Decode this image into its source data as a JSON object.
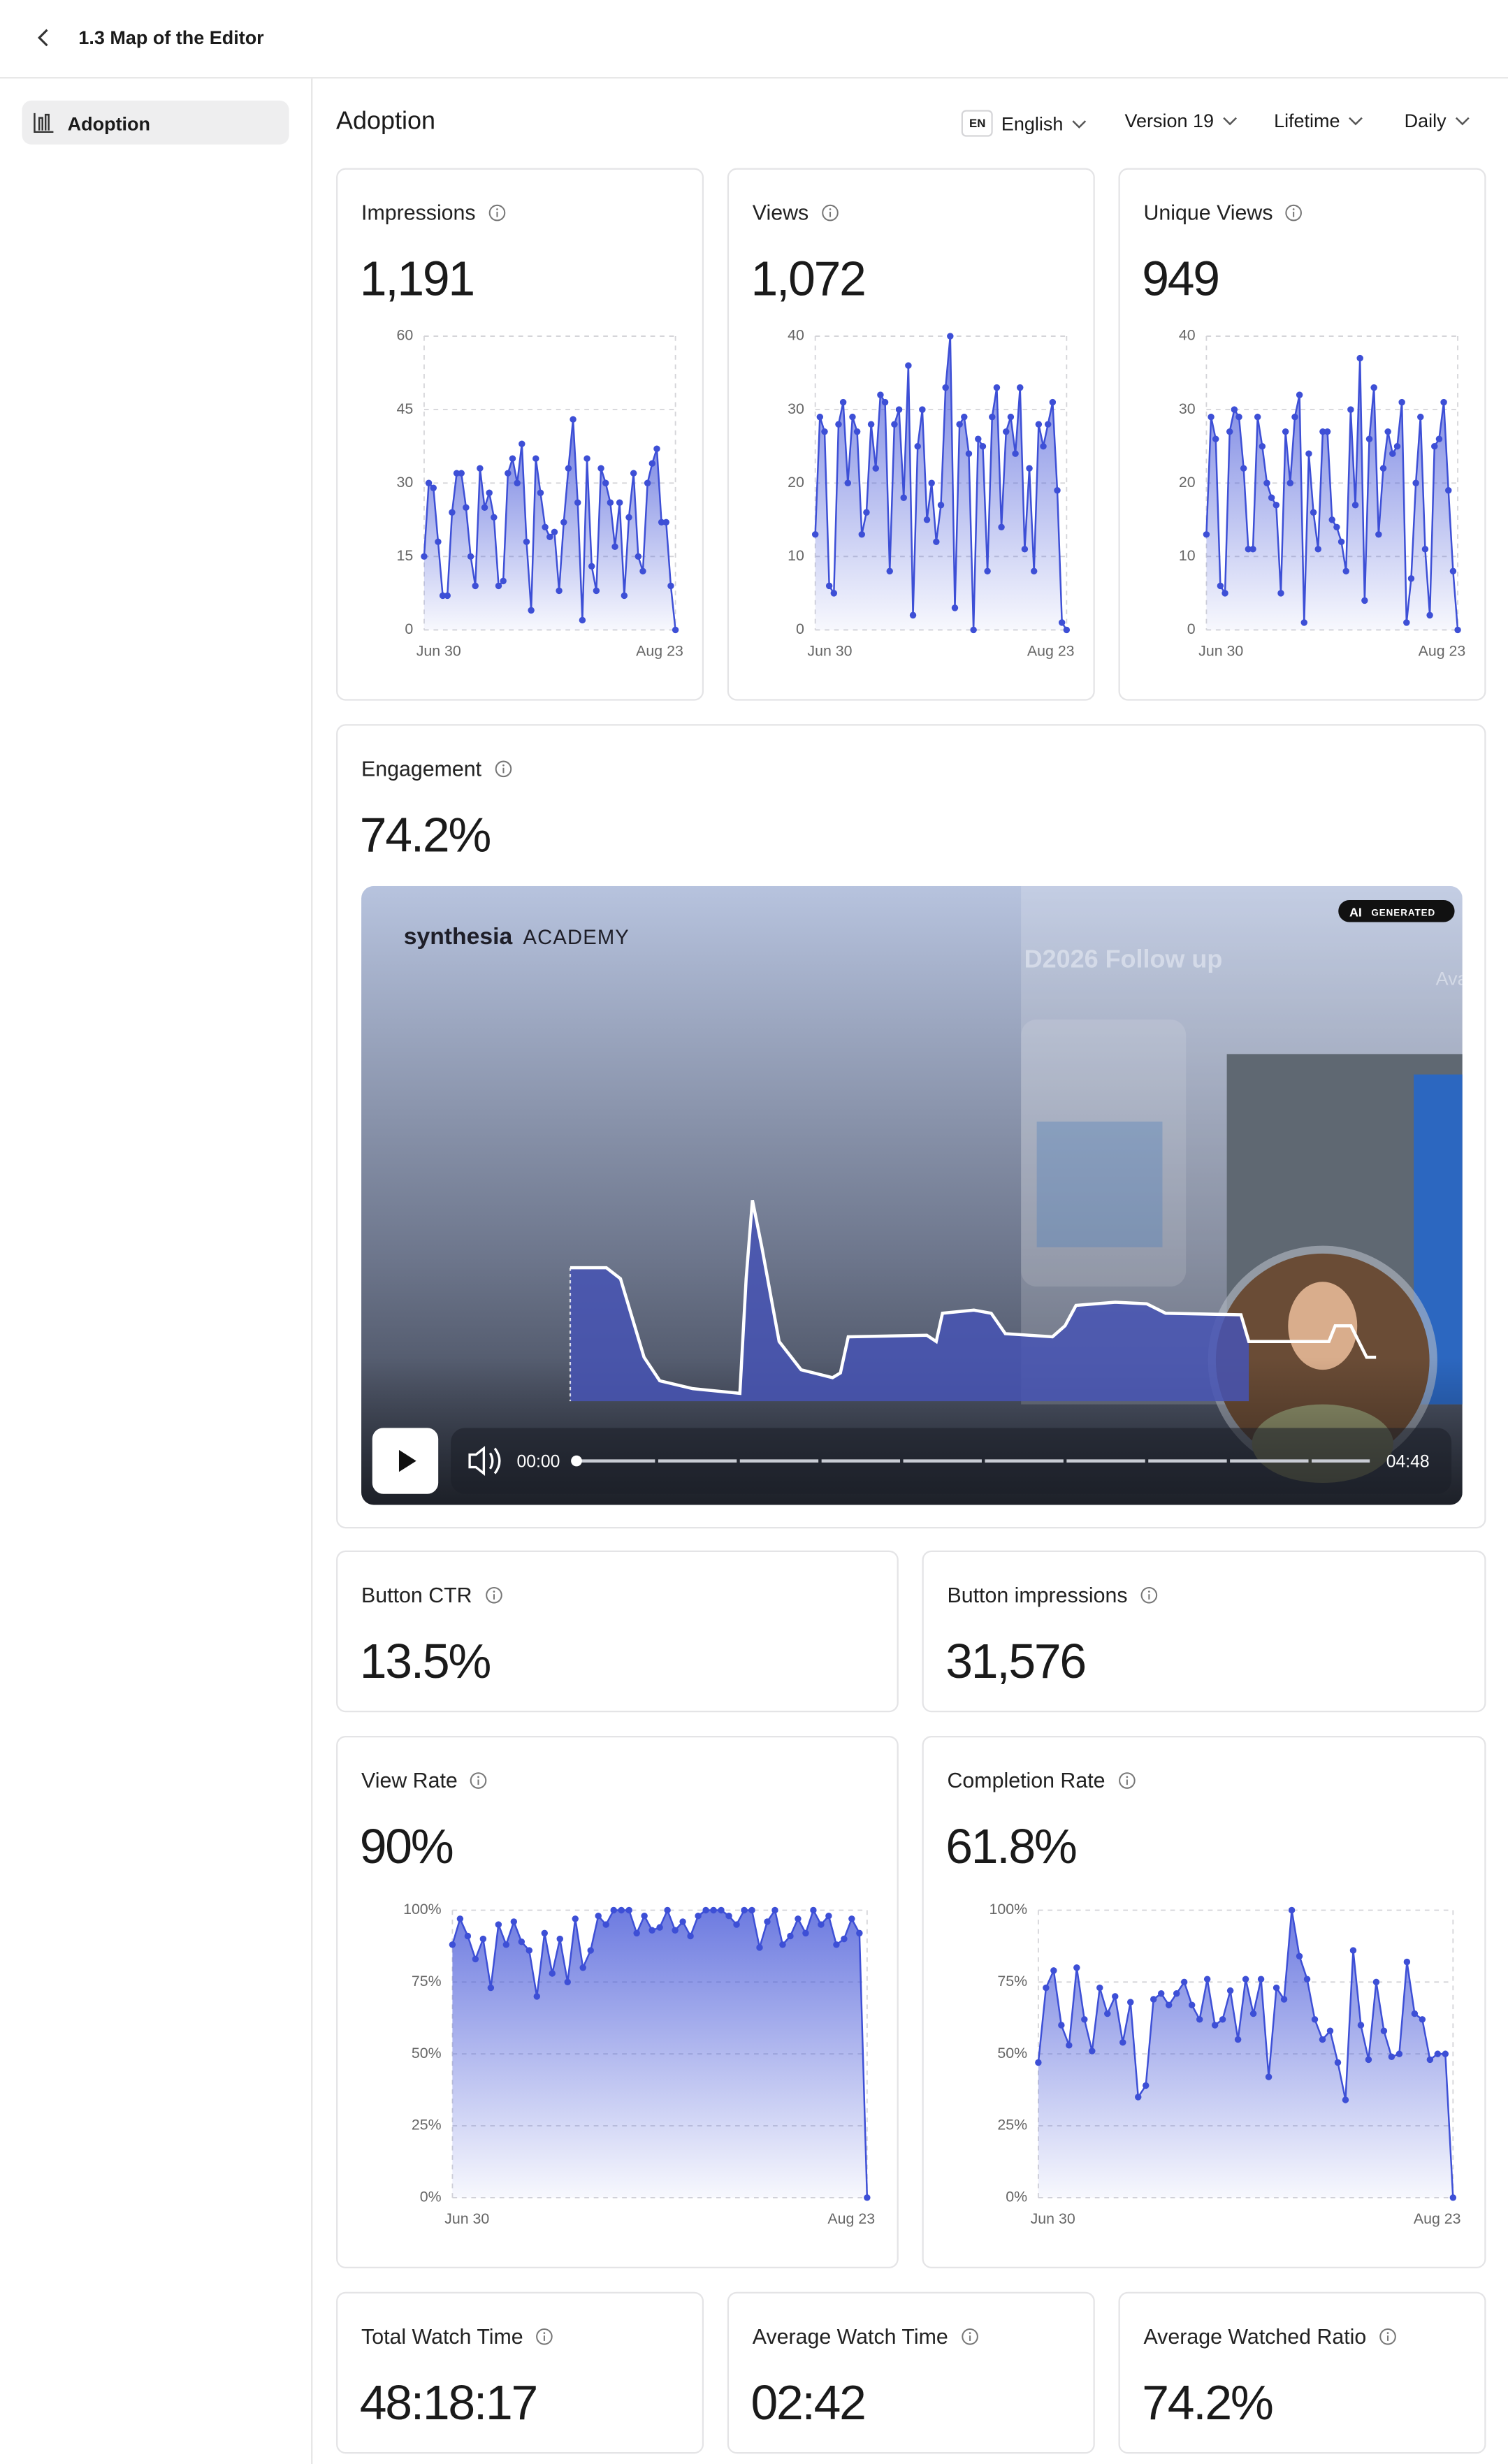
{
  "header": {
    "title": "1.3 Map of the Editor"
  },
  "sidebar": {
    "items": [
      "Adoption"
    ]
  },
  "main": {
    "title": "Adoption",
    "filters": {
      "language_code": "EN",
      "language": "English",
      "version": "Version 19",
      "period": "Lifetime",
      "interval": "Daily"
    }
  },
  "cards": [
    {
      "label": "Impressions",
      "value": "1,191"
    },
    {
      "label": "Views",
      "value": "1,072"
    },
    {
      "label": "Unique Views",
      "value": "949"
    },
    {
      "label": "Engagement",
      "value": "74.2%"
    },
    {
      "label": "Button CTR",
      "value": "13.5%"
    },
    {
      "label": "Button impressions",
      "value": "31,576"
    },
    {
      "label": "View Rate",
      "value": "90%"
    },
    {
      "label": "Completion Rate",
      "value": "61.8%"
    },
    {
      "label": "Total Watch Time",
      "value": "48:18:17"
    },
    {
      "label": "Average Watch Time",
      "value": "02:42"
    },
    {
      "label": "Average Watched Ratio",
      "value": "74.2%"
    }
  ],
  "video": {
    "brand": "synthesia",
    "brand_suffix": "ACADEMY",
    "badge_ai": "AI",
    "badge_text": "GENERATED",
    "background_title": "D2026 Follow up",
    "background_name": "Ava",
    "current_time": "00:00",
    "duration": "04:48"
  },
  "chart_data": [
    {
      "type": "line",
      "area": true,
      "color": "#3d4fd6",
      "categories": [
        "Jun 30",
        null,
        null,
        null,
        null,
        null,
        null,
        null,
        null,
        null,
        null,
        null,
        null,
        null,
        null,
        null,
        null,
        null,
        null,
        null,
        null,
        null,
        null,
        null,
        null,
        null,
        null,
        null,
        null,
        null,
        null,
        null,
        null,
        null,
        null,
        null,
        null,
        null,
        null,
        null,
        null,
        null,
        null,
        null,
        null,
        null,
        null,
        null,
        null,
        null,
        null,
        null,
        null,
        null,
        "Aug 23"
      ],
      "values": [
        15,
        30,
        29,
        18,
        7,
        7,
        24,
        32,
        32,
        25,
        15,
        9,
        33,
        25,
        28,
        23,
        9,
        10,
        32,
        35,
        30,
        38,
        18,
        4,
        35,
        28,
        21,
        19,
        20,
        8,
        22,
        33,
        43,
        26,
        2,
        35,
        13,
        8,
        33,
        30,
        26,
        17,
        26,
        7,
        23,
        32,
        15,
        12,
        30,
        34,
        37,
        22,
        22,
        9,
        0
      ],
      "ylim": [
        0,
        60
      ],
      "yticks": [
        0,
        15,
        30,
        45,
        60
      ],
      "grid": true
    },
    {
      "type": "line",
      "area": true,
      "color": "#3d4fd6",
      "categories": [
        "Jun 30",
        null,
        null,
        null,
        null,
        null,
        null,
        null,
        null,
        null,
        null,
        null,
        null,
        null,
        null,
        null,
        null,
        null,
        null,
        null,
        null,
        null,
        null,
        null,
        null,
        null,
        null,
        null,
        null,
        null,
        null,
        null,
        null,
        null,
        null,
        null,
        null,
        null,
        null,
        null,
        null,
        null,
        null,
        null,
        null,
        null,
        null,
        null,
        null,
        null,
        null,
        null,
        null,
        null,
        "Aug 23"
      ],
      "values": [
        13,
        29,
        27,
        6,
        5,
        28,
        31,
        20,
        29,
        27,
        13,
        16,
        28,
        22,
        32,
        31,
        8,
        28,
        30,
        18,
        36,
        2,
        25,
        30,
        15,
        20,
        12,
        17,
        33,
        40,
        3,
        28,
        29,
        24,
        0,
        26,
        25,
        8,
        29,
        33,
        14,
        27,
        29,
        24,
        33,
        11,
        22,
        8,
        28,
        25,
        28,
        31,
        19,
        1,
        0
      ],
      "ylim": [
        0,
        40
      ],
      "yticks": [
        0,
        10,
        20,
        30,
        40
      ],
      "grid": true
    },
    {
      "type": "line",
      "area": true,
      "color": "#3d4fd6",
      "categories": [
        "Jun 30",
        null,
        null,
        null,
        null,
        null,
        null,
        null,
        null,
        null,
        null,
        null,
        null,
        null,
        null,
        null,
        null,
        null,
        null,
        null,
        null,
        null,
        null,
        null,
        null,
        null,
        null,
        null,
        null,
        null,
        null,
        null,
        null,
        null,
        null,
        null,
        null,
        null,
        null,
        null,
        null,
        null,
        null,
        null,
        null,
        null,
        null,
        null,
        null,
        null,
        null,
        null,
        null,
        null,
        "Aug 23"
      ],
      "values": [
        13,
        29,
        26,
        6,
        5,
        27,
        30,
        29,
        22,
        11,
        11,
        29,
        25,
        20,
        18,
        17,
        5,
        27,
        20,
        29,
        32,
        1,
        24,
        16,
        11,
        27,
        27,
        15,
        14,
        12,
        8,
        30,
        17,
        37,
        4,
        26,
        33,
        13,
        22,
        27,
        24,
        25,
        31,
        1,
        7,
        20,
        29,
        11,
        2,
        25,
        26,
        31,
        19,
        8,
        0
      ],
      "ylim": [
        0,
        40
      ],
      "yticks": [
        0,
        10,
        20,
        30,
        40
      ],
      "grid": true
    },
    {
      "type": "line",
      "area": true,
      "color": "#3d4fd6",
      "categories": [
        "Jun 30",
        null,
        null,
        null,
        null,
        null,
        null,
        null,
        null,
        null,
        null,
        null,
        null,
        null,
        null,
        null,
        null,
        null,
        null,
        null,
        null,
        null,
        null,
        null,
        null,
        null,
        null,
        null,
        null,
        null,
        null,
        null,
        null,
        null,
        null,
        null,
        null,
        null,
        null,
        null,
        null,
        null,
        null,
        null,
        null,
        null,
        null,
        null,
        null,
        null,
        null,
        null,
        null,
        null,
        "Aug 23"
      ],
      "values": [
        88,
        97,
        91,
        83,
        90,
        73,
        95,
        88,
        96,
        89,
        86,
        70,
        92,
        78,
        90,
        75,
        97,
        80,
        86,
        98,
        95,
        100,
        100,
        100,
        92,
        98,
        93,
        94,
        100,
        93,
        96,
        91,
        98,
        100,
        100,
        100,
        98,
        95,
        100,
        100,
        87,
        96,
        100,
        88,
        91,
        97,
        92,
        100,
        95,
        98,
        88,
        90,
        97,
        92,
        0
      ],
      "ylim": [
        0,
        100
      ],
      "yticks": [
        {
          "value": 0,
          "label": "0%"
        },
        {
          "value": 25,
          "label": "25%"
        },
        {
          "value": 50,
          "label": "50%"
        },
        {
          "value": 75,
          "label": "75%"
        },
        {
          "value": 100,
          "label": "100%"
        }
      ],
      "grid": true
    },
    {
      "type": "line",
      "area": true,
      "color": "#3d4fd6",
      "categories": [
        "Jun 30",
        null,
        null,
        null,
        null,
        null,
        null,
        null,
        null,
        null,
        null,
        null,
        null,
        null,
        null,
        null,
        null,
        null,
        null,
        null,
        null,
        null,
        null,
        null,
        null,
        null,
        null,
        null,
        null,
        null,
        null,
        null,
        null,
        null,
        null,
        null,
        null,
        null,
        null,
        null,
        null,
        null,
        null,
        null,
        null,
        null,
        null,
        null,
        null,
        null,
        null,
        null,
        null,
        null,
        "Aug 23"
      ],
      "values": [
        47,
        73,
        79,
        60,
        53,
        80,
        62,
        51,
        73,
        64,
        70,
        54,
        68,
        35,
        39,
        69,
        71,
        67,
        71,
        75,
        67,
        62,
        76,
        60,
        62,
        72,
        55,
        76,
        64,
        76,
        42,
        73,
        69,
        100,
        84,
        76,
        62,
        55,
        58,
        47,
        34,
        86,
        60,
        48,
        75,
        58,
        49,
        50,
        82,
        64,
        62,
        48,
        50,
        50,
        0
      ],
      "ylim": [
        0,
        100
      ],
      "yticks": [
        {
          "value": 0,
          "label": "0%"
        },
        {
          "value": 25,
          "label": "25%"
        },
        {
          "value": 50,
          "label": "50%"
        },
        {
          "value": 75,
          "label": "75%"
        },
        {
          "value": 100,
          "label": "100%"
        }
      ],
      "grid": true
    }
  ]
}
